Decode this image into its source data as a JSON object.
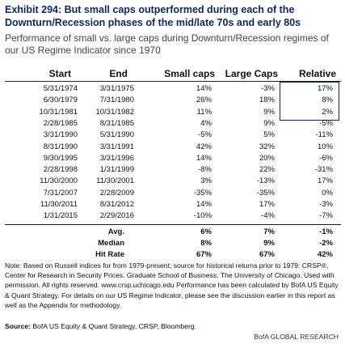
{
  "header": {
    "title": "Exhibit 294: But small caps outperformed during each of the Downturn/Recession phases of the mid/late 70s and early 80s",
    "subtitle": "Performance of small vs. large caps during Downturn/Recession regimes of our US Regime Indicator since 1970"
  },
  "table": {
    "columns": [
      "Start",
      "End",
      "Small caps",
      "Large Caps",
      "Relative"
    ],
    "rows": [
      [
        "5/31/1974",
        "3/31/1975",
        "14%",
        "-3%",
        "17%"
      ],
      [
        "6/30/1979",
        "7/31/1980",
        "26%",
        "18%",
        "8%"
      ],
      [
        "10/31/1981",
        "10/31/1982",
        "11%",
        "9%",
        "2%"
      ],
      [
        "2/28/1985",
        "8/31/1985",
        "4%",
        "9%",
        "-5%"
      ],
      [
        "3/31/1990",
        "5/31/1990",
        "-5%",
        "5%",
        "-11%"
      ],
      [
        "8/31/1990",
        "3/31/1991",
        "42%",
        "32%",
        "10%"
      ],
      [
        "9/30/1995",
        "3/31/1996",
        "14%",
        "20%",
        "-6%"
      ],
      [
        "2/28/1998",
        "1/31/1999",
        "-8%",
        "22%",
        "-31%"
      ],
      [
        "11/30/2000",
        "11/30/2001",
        "3%",
        "-13%",
        "17%"
      ],
      [
        "7/31/2007",
        "2/28/2009",
        "-35%",
        "-35%",
        "0%"
      ],
      [
        "11/30/2011",
        "8/31/2012",
        "14%",
        "17%",
        "-3%"
      ],
      [
        "1/31/2015",
        "2/29/2016",
        "-10%",
        "-4%",
        "-7%"
      ]
    ],
    "summary": [
      [
        "Avg.",
        "6%",
        "7%",
        "-1%"
      ],
      [
        "Median",
        "8%",
        "9%",
        "-2%"
      ],
      [
        "Hit Rate",
        "67%",
        "67%",
        "42%"
      ]
    ]
  },
  "note": "Note: Based on Russell indices for from 1979-present; source for historical returns prior to 1979: CRSP®, Center for Research in Security Prices. Graduate School of Business, The University of Chicago. Used with permission. All rights reserved. www.crsp.uchicago.edu Performance has been calculated by BofA US Equity & Quant Strategy. For details on our US Regime Indicator, please see the discussion earlier in this report as well as the Appendix for methodology.",
  "source": {
    "label": "Source:",
    "text": "BofA US Equity & Quant Strategy, CRSP, Bloomberg."
  },
  "footer": "BofA GLOBAL RESEARCH"
}
